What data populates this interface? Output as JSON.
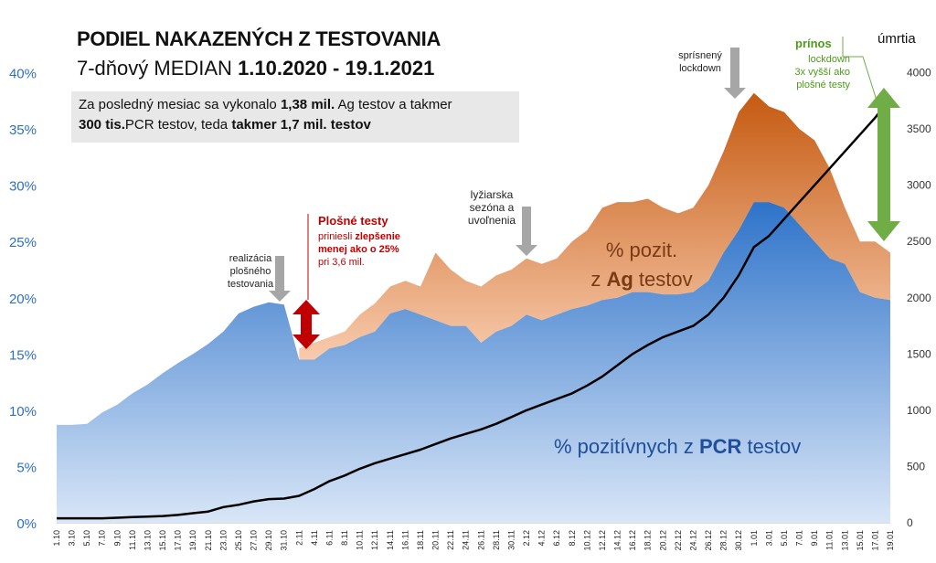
{
  "header": {
    "title": "PODIEL NAKAZENÝCH Z TESTOVANIA",
    "subtitle_prefix": "7-dňový MEDIAN ",
    "subtitle_range": "1.10.2020 - 19.1.2021"
  },
  "infobox": {
    "t1": "Za posledný mesiac sa vykonalo ",
    "b1": "1,38 mil.",
    "t2": " Ag testov a takmer",
    "b2": "300 tis.",
    "t3": "PCR testov, teda ",
    "b3": "takmer 1,7 mil. testov"
  },
  "annotations": {
    "realizacia": [
      "realizácia",
      "plošného",
      "testovania"
    ],
    "plosne_title": "Plošné testy",
    "plosne_1a": "priniesli ",
    "plosne_1b": "zlepšenie",
    "plosne_2": "menej ako o 25%",
    "plosne_3": "pri 3,6 mil.",
    "lyziarska": [
      "lyžiarska",
      "sezóna a",
      "uvoľnenia"
    ],
    "lockdown": [
      "sprísnený",
      "lockdown"
    ],
    "prinos_title": "prínos",
    "prinos": [
      "lockdown",
      "3x vyšší ako",
      "plošné testy"
    ],
    "ag_label_1": "% pozit.",
    "ag_label_2a": "z ",
    "ag_label_2b": "Ag",
    "ag_label_2c": " testov",
    "pcr_label_a": "% pozitívnych z ",
    "pcr_label_b": "PCR",
    "pcr_label_c": " testov",
    "umrtia": "úmrtia"
  },
  "colors": {
    "pcr_top": "#2e73c9",
    "pcr_bottom": "#d9e6f7",
    "ag_top": "#c55a11",
    "ag_bottom": "#f8cbad",
    "deaths": "#000000",
    "red": "#c00000",
    "green": "#70ad47",
    "left_axis": "#2e6fbf"
  },
  "chart_data": {
    "type": "area",
    "x": [
      "1.10",
      "3.10",
      "5.10",
      "7.10",
      "9.10",
      "11.10",
      "13.10",
      "15.10",
      "17.10",
      "19.10",
      "21.10",
      "23.10",
      "25.10",
      "27.10",
      "29.10",
      "31.10",
      "2.11",
      "4.11",
      "6.11",
      "8.11",
      "10.11",
      "12.11",
      "14.11",
      "16.11",
      "18.11",
      "20.11",
      "22.11",
      "24.11",
      "26.11",
      "28.11",
      "30.11",
      "2.12",
      "4.12",
      "6.12",
      "8.12",
      "10.12",
      "12.12",
      "14.12",
      "16.12",
      "18.12",
      "20.12",
      "22.12",
      "24.12",
      "26.12",
      "28.12",
      "30.12",
      "1.01",
      "3.01",
      "5.01",
      "7.01",
      "9.01",
      "11.01",
      "13.01",
      "15.01",
      "17.01",
      "19.01"
    ],
    "yticks_left": [
      "0%",
      "5%",
      "10%",
      "15%",
      "20%",
      "25%",
      "30%",
      "35%",
      "40%"
    ],
    "yticks_right": [
      "0",
      "500",
      "1000",
      "1500",
      "2000",
      "2500",
      "3000",
      "3500",
      "4000"
    ],
    "ylim_left": [
      0,
      45
    ],
    "ylim_right": [
      0,
      4500
    ],
    "series": [
      {
        "name": "% pozitívnych z PCR testov",
        "axis": "left",
        "values": [
          8.7,
          8.7,
          8.8,
          9.8,
          10.5,
          11.5,
          12.3,
          13.3,
          14.2,
          15.0,
          15.9,
          17.0,
          18.6,
          19.2,
          19.6,
          19.4,
          14.5,
          14.5,
          15.5,
          15.8,
          16.5,
          17.0,
          18.6,
          19.0,
          18.5,
          18.0,
          17.5,
          17.5,
          16.0,
          17.0,
          17.5,
          18.5,
          18.0,
          18.5,
          19.0,
          19.3,
          19.8,
          20.0,
          20.5,
          20.5,
          20.3,
          20.3,
          20.5,
          21.5,
          24.0,
          26.0,
          28.5,
          28.5,
          28.0,
          26.5,
          25.0,
          23.5,
          23.0,
          20.5,
          20.0,
          19.8
        ]
      },
      {
        "name": "% pozit. z Ag testov",
        "axis": "left",
        "values": [
          null,
          null,
          null,
          null,
          null,
          null,
          null,
          null,
          null,
          null,
          null,
          null,
          null,
          null,
          null,
          null,
          15.5,
          16.0,
          16.5,
          17.0,
          18.5,
          19.5,
          21.0,
          21.5,
          21.0,
          24.0,
          22.5,
          21.5,
          21.0,
          22.0,
          22.5,
          23.5,
          23.0,
          23.5,
          25.0,
          26.0,
          28.0,
          28.5,
          28.5,
          28.8,
          28.0,
          27.5,
          28.0,
          30.0,
          33.0,
          36.5,
          38.2,
          37.0,
          36.5,
          35.0,
          34.0,
          31.5,
          28.0,
          25.0,
          25.0,
          24.0
        ]
      },
      {
        "name": "úmrtia",
        "axis": "right",
        "values": [
          40,
          40,
          40,
          40,
          45,
          50,
          55,
          60,
          70,
          85,
          100,
          140,
          160,
          190,
          210,
          215,
          240,
          300,
          370,
          420,
          480,
          530,
          570,
          610,
          650,
          700,
          750,
          790,
          830,
          880,
          940,
          1000,
          1050,
          1100,
          1150,
          1220,
          1300,
          1400,
          1500,
          1580,
          1650,
          1700,
          1750,
          1850,
          2000,
          2200,
          2450,
          2550,
          2700,
          2850,
          3000,
          3150,
          3300,
          3450,
          3600,
          3770
        ]
      }
    ]
  }
}
